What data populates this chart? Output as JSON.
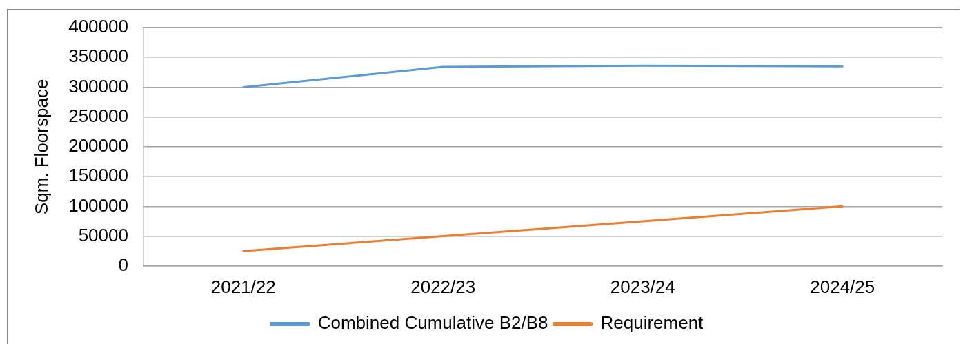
{
  "chart_data": {
    "type": "line",
    "ylabel": "Sqm. Floorspace",
    "categories": [
      "2021/22",
      "2022/23",
      "2023/24",
      "2024/25"
    ],
    "series": [
      {
        "name": "Combined Cumulative B2/B8",
        "color": "#5b9bd5",
        "values": [
          300000,
          334000,
          336000,
          335000
        ]
      },
      {
        "name": "Requirement",
        "color": "#ed7d31",
        "values": [
          25000,
          50000,
          75000,
          100000
        ]
      }
    ],
    "ylim": [
      0,
      400000
    ],
    "yticks": [
      0,
      50000,
      100000,
      150000,
      200000,
      250000,
      300000,
      350000,
      400000
    ],
    "grid": "y",
    "legend": "bottom",
    "marker": "none",
    "line_style": "solid"
  }
}
